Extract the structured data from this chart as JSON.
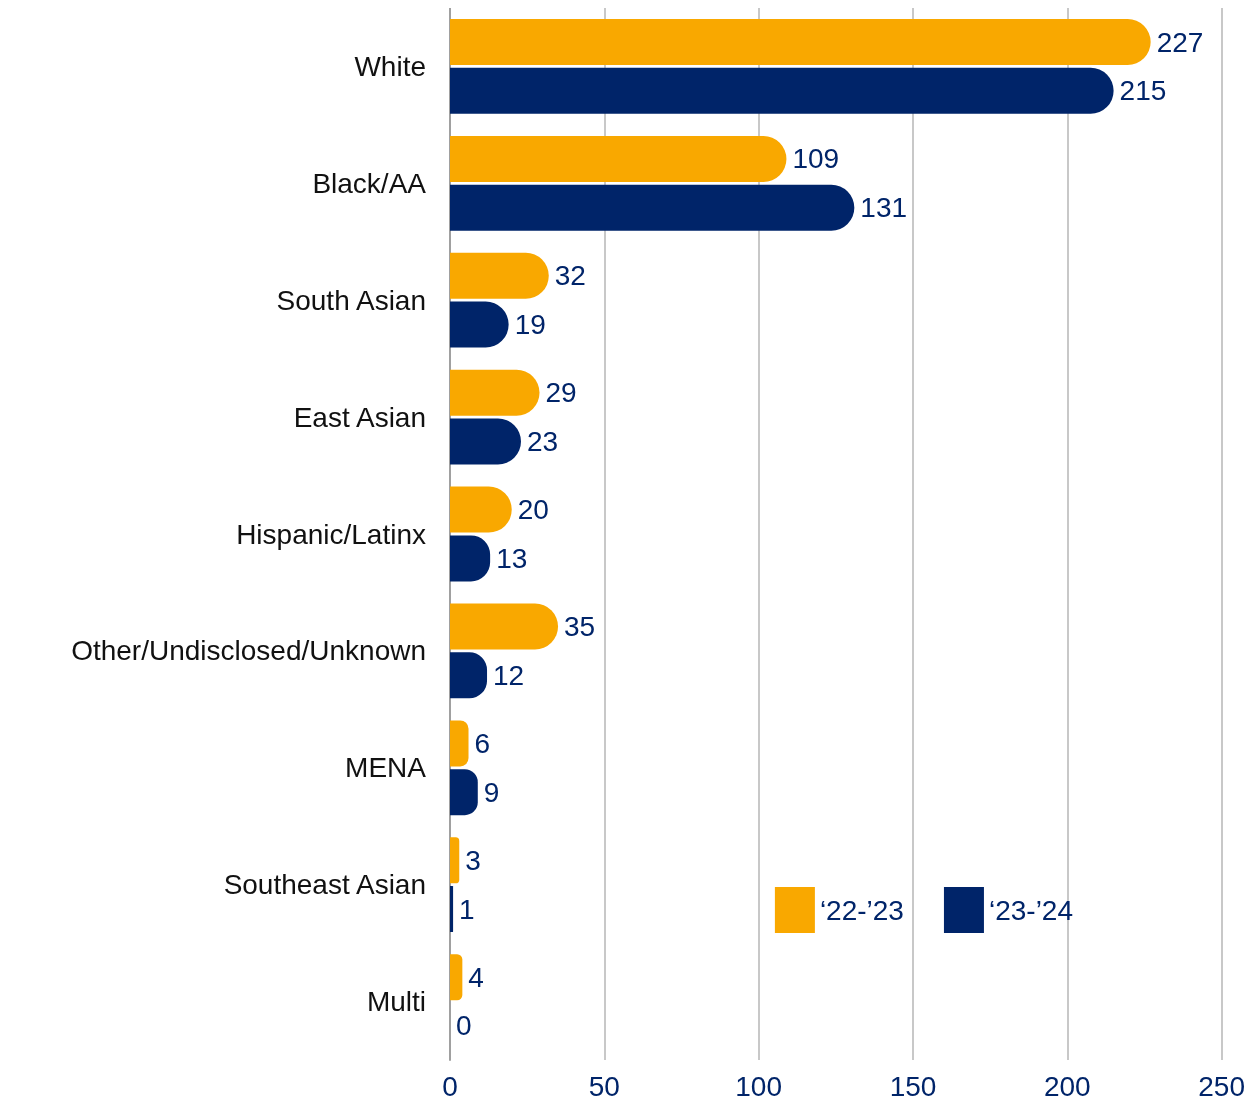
{
  "chart_data": {
    "type": "bar",
    "orientation": "horizontal",
    "categories": [
      "White",
      "Black/AA",
      "South Asian",
      "East Asian",
      "Hispanic/Latinx",
      "Other/Undisclosed/Unknown",
      "MENA",
      "Southeast Asian",
      "Multi"
    ],
    "series": [
      {
        "name": "‘22-’23",
        "color": "#f9a800",
        "values": [
          227,
          109,
          32,
          29,
          20,
          35,
          6,
          3,
          4
        ]
      },
      {
        "name": "‘23-’24",
        "color": "#002469",
        "values": [
          215,
          131,
          19,
          23,
          13,
          12,
          9,
          1,
          0
        ]
      }
    ],
    "xlim": [
      0,
      250
    ],
    "xticks": [
      0,
      50,
      100,
      150,
      200,
      250
    ],
    "grid": "x",
    "legend": "bottom right",
    "data_labels": true
  }
}
